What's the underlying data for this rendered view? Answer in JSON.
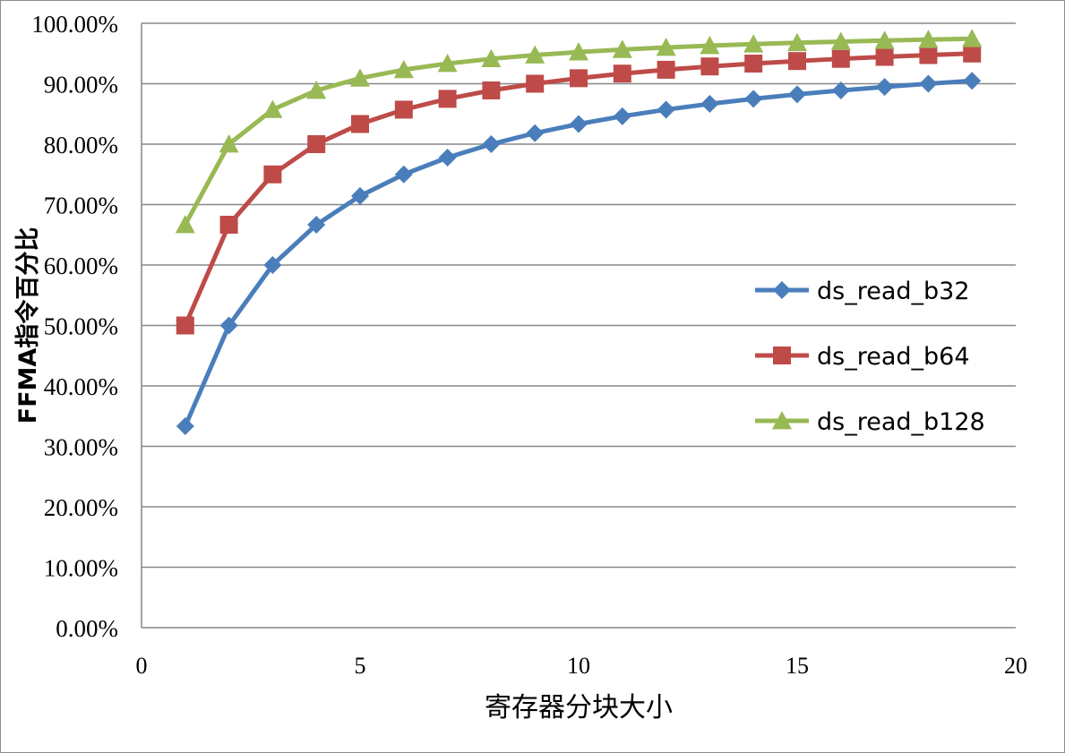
{
  "chart_data": {
    "type": "line",
    "xlabel": "寄存器分块大小",
    "ylabel": "FFMA指令百分比",
    "xlim": [
      0,
      20
    ],
    "ylim": [
      0,
      100
    ],
    "x_ticks": [
      0,
      5,
      10,
      15,
      20
    ],
    "y_ticks": [
      0,
      10,
      20,
      30,
      40,
      50,
      60,
      70,
      80,
      90,
      100
    ],
    "y_tick_format": "percent_2dp",
    "grid": "horizontal",
    "legend_position": "right",
    "x": [
      1,
      2,
      3,
      4,
      5,
      6,
      7,
      8,
      9,
      10,
      11,
      12,
      13,
      14,
      15,
      16,
      17,
      18,
      19
    ],
    "series": [
      {
        "name": "ds_read_b32",
        "color": "#4a7ebb",
        "marker": "diamond",
        "values": [
          33.33,
          50.0,
          60.0,
          66.67,
          71.43,
          75.0,
          77.78,
          80.0,
          81.82,
          83.33,
          84.62,
          85.71,
          86.67,
          87.5,
          88.24,
          88.89,
          89.47,
          90.0,
          90.48
        ]
      },
      {
        "name": "ds_read_b64",
        "color": "#be4b48",
        "marker": "square",
        "values": [
          50.0,
          66.67,
          75.0,
          80.0,
          83.33,
          85.71,
          87.5,
          88.89,
          90.0,
          90.91,
          91.67,
          92.31,
          92.86,
          93.33,
          93.75,
          94.12,
          94.44,
          94.74,
          95.0
        ]
      },
      {
        "name": "ds_read_b128",
        "color": "#98b954",
        "marker": "triangle",
        "values": [
          66.67,
          80.0,
          85.71,
          88.89,
          90.91,
          92.31,
          93.33,
          94.12,
          94.74,
          95.24,
          95.65,
          96.0,
          96.3,
          96.55,
          96.77,
          96.97,
          97.14,
          97.3,
          97.44
        ]
      }
    ]
  }
}
